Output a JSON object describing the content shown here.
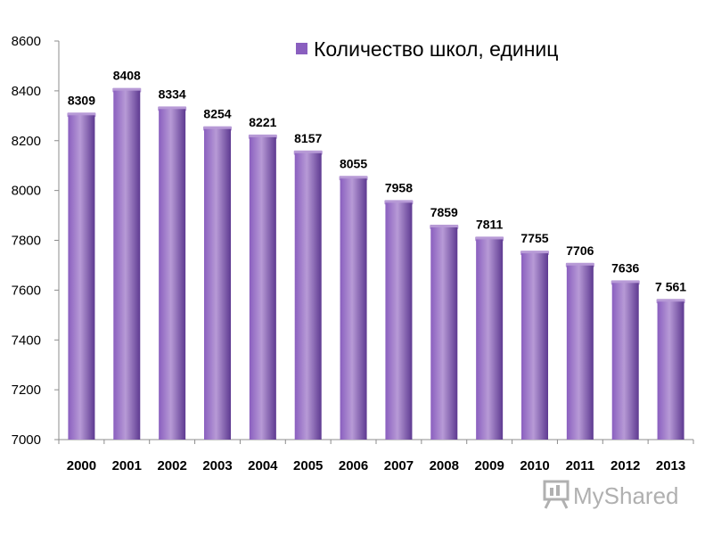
{
  "colors": {
    "bar_light": "#b79ad6",
    "bar_mid": "#8a5fbf",
    "bar_dark": "#5e3a91",
    "axis": "#8c8c8c",
    "watermark": "#b0b0b0"
  },
  "watermark": {
    "icon": "presentation-board-icon",
    "text": "MyShared"
  },
  "chart_data": {
    "type": "bar",
    "title": "",
    "xlabel": "",
    "ylabel": "",
    "ylim": [
      7000,
      8600
    ],
    "yticks": [
      7000,
      7200,
      7400,
      7600,
      7800,
      8000,
      8200,
      8400,
      8600
    ],
    "grid": false,
    "legend_position": "top-right",
    "categories": [
      "2000",
      "2001",
      "2002",
      "2003",
      "2004",
      "2005",
      "2006",
      "2007",
      "2008",
      "2009",
      "2010",
      "2011",
      "2012",
      "2013"
    ],
    "series": [
      {
        "name": "Количество школ, единиц",
        "values": [
          8309,
          8408,
          8334,
          8254,
          8221,
          8157,
          8055,
          7958,
          7859,
          7811,
          7755,
          7706,
          7636,
          7561
        ],
        "labels": [
          "8309",
          "8408",
          "8334",
          "8254",
          "8221",
          "8157",
          "8055",
          "7958",
          "7859",
          "7811",
          "7755",
          "7706",
          "7636",
          "7 561"
        ]
      }
    ]
  }
}
